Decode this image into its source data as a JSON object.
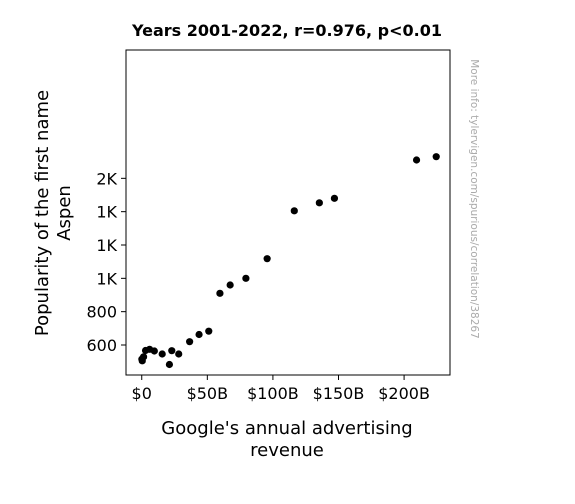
{
  "chart_data": {
    "type": "scatter",
    "title": "Years 2001-2022, r=0.976, p<0.01",
    "xlabel": "Google's annual advertising\nrevenue",
    "ylabel": "Popularity of the first name\nAspen",
    "watermark": "More info: tylervigen.com/spurious/correlation/38267",
    "xlim": [
      -12,
      235
    ],
    "ylim": [
      420,
      2370
    ],
    "x_unit": "billion USD",
    "y_unit": "babies born",
    "x_ticks": [
      {
        "value": 0,
        "label": "$0"
      },
      {
        "value": 50,
        "label": "$50B"
      },
      {
        "value": 100,
        "label": "$100B"
      },
      {
        "value": 150,
        "label": "$150B"
      },
      {
        "value": 200,
        "label": "$200B"
      }
    ],
    "y_ticks": [
      {
        "value": 600,
        "label": "600"
      },
      {
        "value": 800,
        "label": "800"
      },
      {
        "value": 1000,
        "label": "1K"
      },
      {
        "value": 1200,
        "label": "1K"
      },
      {
        "value": 1400,
        "label": "1K"
      },
      {
        "value": 1600,
        "label": "2K"
      }
    ],
    "grid": false,
    "marker_color": "#000000",
    "points": [
      {
        "x": 0.1,
        "y": 515
      },
      {
        "x": 0.4,
        "y": 505
      },
      {
        "x": 1.4,
        "y": 529
      },
      {
        "x": 2.9,
        "y": 567
      },
      {
        "x": 6.0,
        "y": 574
      },
      {
        "x": 9.6,
        "y": 564
      },
      {
        "x": 15.6,
        "y": 546
      },
      {
        "x": 21.1,
        "y": 483
      },
      {
        "x": 22.9,
        "y": 566
      },
      {
        "x": 28.2,
        "y": 546
      },
      {
        "x": 36.5,
        "y": 620
      },
      {
        "x": 43.7,
        "y": 663
      },
      {
        "x": 51.1,
        "y": 683
      },
      {
        "x": 59.6,
        "y": 910
      },
      {
        "x": 67.4,
        "y": 960
      },
      {
        "x": 79.4,
        "y": 1000
      },
      {
        "x": 95.6,
        "y": 1118
      },
      {
        "x": 116.3,
        "y": 1405
      },
      {
        "x": 135.4,
        "y": 1453
      },
      {
        "x": 146.9,
        "y": 1480
      },
      {
        "x": 209.5,
        "y": 1710
      },
      {
        "x": 224.5,
        "y": 1730
      }
    ]
  }
}
